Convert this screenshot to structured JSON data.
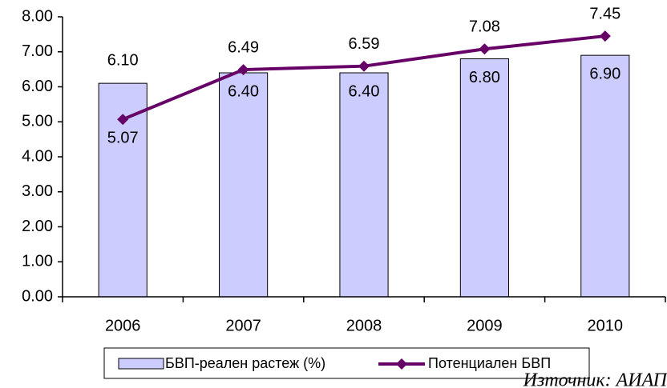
{
  "chart_data": {
    "type": "bar-line",
    "categories": [
      "2006",
      "2007",
      "2008",
      "2009",
      "2010"
    ],
    "series": [
      {
        "name": "БВП-реален растеж (%)",
        "type": "bar",
        "color": "#ccccff",
        "values": [
          6.1,
          6.4,
          6.4,
          6.8,
          6.9
        ],
        "value_labels": [
          "6.10",
          "6.40",
          "6.40",
          "6.80",
          "6.90"
        ]
      },
      {
        "name": "Потенциален БВП",
        "type": "line",
        "color": "#660066",
        "values": [
          5.07,
          6.49,
          6.59,
          7.08,
          7.45
        ],
        "value_labels": [
          "5.07",
          "6.49",
          "6.59",
          "7.08",
          "7.45"
        ]
      }
    ],
    "ylim": [
      0,
      8
    ],
    "yticks": [
      {
        "value": 0,
        "label": "0.00"
      },
      {
        "value": 1,
        "label": "1.00"
      },
      {
        "value": 2,
        "label": "2.00"
      },
      {
        "value": 3,
        "label": "3.00"
      },
      {
        "value": 4,
        "label": "4.00"
      },
      {
        "value": 5,
        "label": "5.00"
      },
      {
        "value": 6,
        "label": "6.00"
      },
      {
        "value": 7,
        "label": "7.00"
      },
      {
        "value": 8,
        "label": "8.00"
      }
    ],
    "grid": false,
    "legend": "bottom",
    "source": "Източник: АИАП"
  }
}
